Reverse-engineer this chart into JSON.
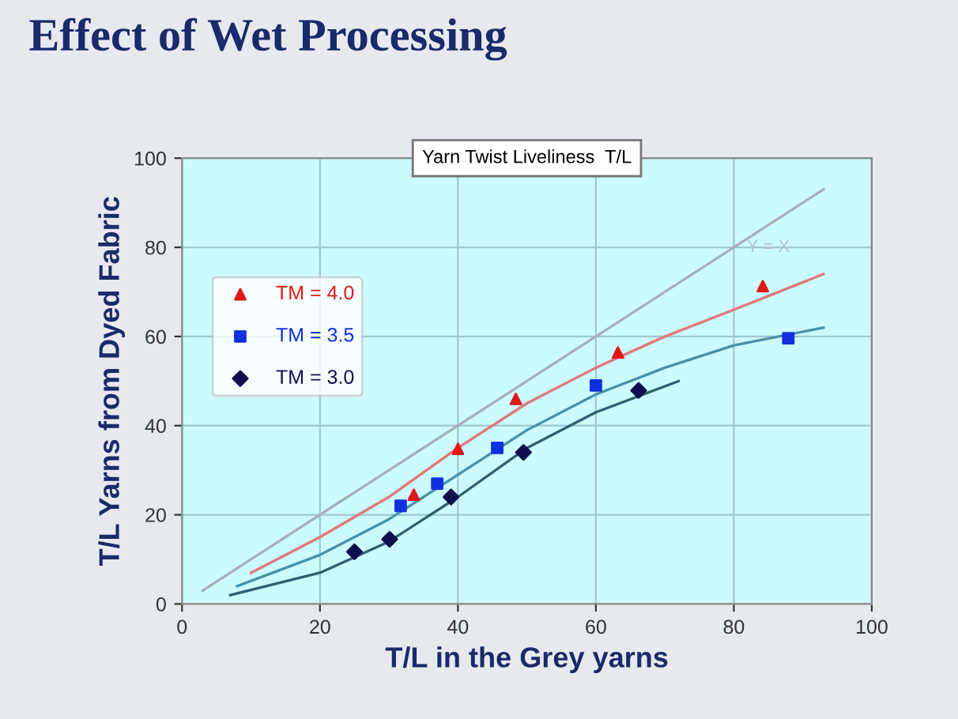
{
  "chart_data": {
    "type": "scatter",
    "title": "Effect of Wet Processing",
    "subtitle": "Yarn Twist Liveliness  T/L",
    "xlabel": "T/L in the Grey yarns",
    "ylabel": "T/L Yarns from Dyed Fabric",
    "xlim": [
      0,
      100
    ],
    "ylim": [
      0,
      100
    ],
    "xticks": [
      0,
      20,
      40,
      60,
      80,
      100
    ],
    "yticks": [
      0,
      20,
      40,
      60,
      80,
      100
    ],
    "grid": true,
    "legend": "left",
    "series": [
      {
        "type": "line",
        "color": "#a8b0b8",
        "x": [
          3,
          93
        ],
        "values": [
          3,
          93
        ],
        "marker": "none"
      },
      {
        "type": "line",
        "color": "#e07878",
        "x": [
          10,
          20,
          30,
          40,
          50,
          60,
          70,
          80,
          93
        ],
        "values": [
          7,
          15,
          24,
          35,
          45,
          53,
          60,
          66,
          74
        ],
        "marker": "none"
      },
      {
        "type": "line",
        "color": "#4a90a8",
        "x": [
          8,
          20,
          30,
          40,
          50,
          60,
          70,
          80,
          93
        ],
        "values": [
          4,
          11,
          19,
          29,
          39,
          47,
          53,
          58,
          62
        ],
        "marker": "none"
      },
      {
        "type": "line",
        "color": "#2f6070",
        "x": [
          7,
          20,
          30,
          40,
          50,
          60,
          72
        ],
        "values": [
          2,
          7,
          14,
          24,
          35,
          43,
          50
        ],
        "marker": "none"
      },
      {
        "name": "TM = 4.0",
        "color": "#e01818",
        "marker": "triangle",
        "x": [
          33.6,
          40,
          48.4,
          63.2,
          84.2
        ],
        "values": [
          24.5,
          34.8,
          46,
          56.4,
          71.3
        ]
      },
      {
        "name": "TM = 3.5",
        "color": "#1030e0",
        "marker": "square",
        "x": [
          31.7,
          37,
          45.7,
          60,
          87.9
        ],
        "values": [
          22,
          27,
          35,
          49,
          59.6
        ]
      },
      {
        "name": "TM = 3.0",
        "color": "#101050",
        "marker": "diamond",
        "x": [
          25,
          30.1,
          39,
          49.5,
          66.2
        ],
        "values": [
          11.7,
          14.5,
          24,
          34,
          47.9
        ]
      }
    ],
    "annotations": [
      "Y = X"
    ]
  }
}
